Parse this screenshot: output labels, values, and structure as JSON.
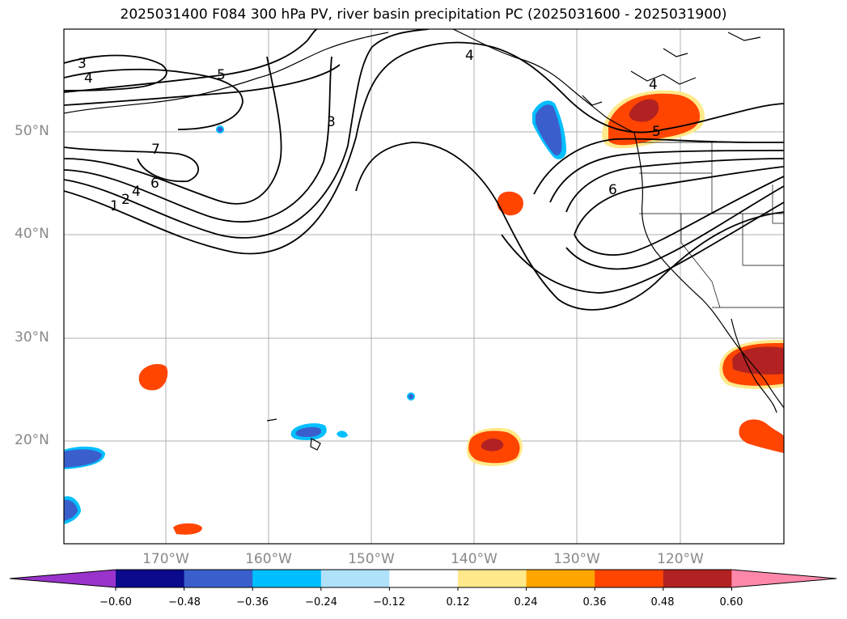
{
  "title": "2025031400 F084 300 hPa PV, river basin precipitation PC (2025031600 - 2025031900)",
  "lat_labels": [
    "50°N",
    "40°N",
    "30°N",
    "20°N"
  ],
  "lon_labels": [
    "170°W",
    "160°W",
    "150°W",
    "140°W",
    "130°W",
    "120°W"
  ],
  "pv_contour_labels": [
    "3",
    "4",
    "5",
    "7",
    "6",
    "4",
    "2",
    "1",
    "3",
    "4",
    "4",
    "5",
    "6"
  ],
  "colorbar": {
    "ticks": [
      "−0.60",
      "−0.48",
      "−0.36",
      "−0.24",
      "−0.12",
      "0.12",
      "0.24",
      "0.36",
      "0.48",
      "0.60"
    ],
    "colors": [
      "#9933cc",
      "#0a0a8a",
      "#3a5fcd",
      "#00bfff",
      "#afe1fa",
      "#ffffff",
      "#ffe98a",
      "#ffa500",
      "#ff4500",
      "#b22222",
      "#ff88aa",
      "#ff88aa"
    ]
  },
  "fill_colors": {
    "pos_light": "#ffe98a",
    "pos_med": "#ff4500",
    "pos_dark": "#b22222",
    "neg_light": "#00bfff",
    "neg_med": "#3a5fcd",
    "neg_dark": "#0a0a8a"
  }
}
